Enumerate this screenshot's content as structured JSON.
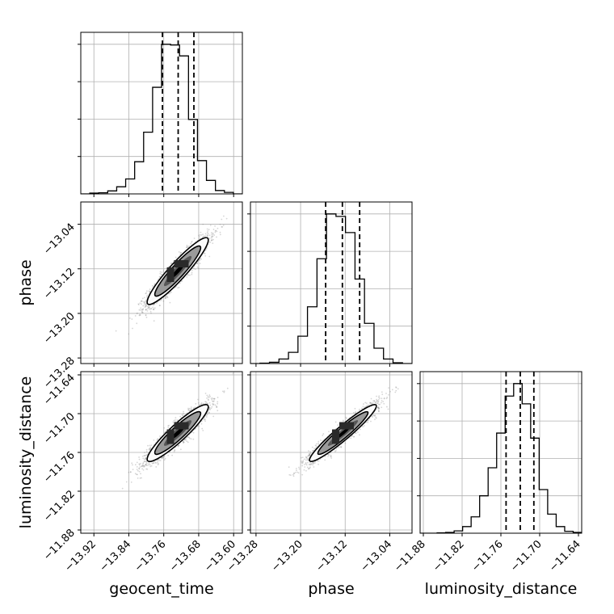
{
  "chart_data": {
    "type": "corner",
    "parameters": [
      {
        "name": "geocent_time",
        "label": "geocent_time",
        "range": [
          -13.95,
          -13.58
        ],
        "ticks": [
          -13.92,
          -13.84,
          -13.76,
          -13.68,
          -13.6
        ],
        "tick_labels": [
          "−13.92",
          "−13.84",
          "−13.76",
          "−13.68",
          "−13.60"
        ],
        "quantiles": [
          -13.763,
          -13.727,
          -13.691
        ]
      },
      {
        "name": "phase",
        "label": "phase",
        "range": [
          -13.29,
          -13.0
        ],
        "ticks": [
          -13.28,
          -13.2,
          -13.12,
          -13.04
        ],
        "tick_labels": [
          "−13.28",
          "−13.20",
          "−13.12",
          "−13.04"
        ],
        "quantiles": [
          -13.155,
          -13.125,
          -13.094
        ]
      },
      {
        "name": "luminosity_distance",
        "label": "luminosity_distance",
        "range": [
          -11.885,
          -11.635
        ],
        "ticks": [
          -11.88,
          -11.82,
          -11.76,
          -11.7,
          -11.64
        ],
        "tick_labels": [
          "−11.88",
          "−11.82",
          "−11.76",
          "−11.70",
          "−11.64"
        ],
        "quantiles": [
          -11.752,
          -11.73,
          -11.709
        ]
      }
    ],
    "histograms": [
      {
        "param": "geocent_time",
        "counts": [
          0,
          2,
          3,
          8,
          19,
          40,
          86,
          165,
          285,
          400,
          398,
          369,
          199,
          89,
          36,
          9,
          4,
          0
        ]
      },
      {
        "param": "phase",
        "counts": [
          0,
          1,
          3,
          11,
          27,
          66,
          137,
          253,
          361,
          355,
          316,
          204,
          97,
          37,
          11,
          2,
          0
        ]
      },
      {
        "param": "luminosity_distance",
        "counts": [
          0,
          0,
          1,
          2,
          6,
          17,
          42,
          96,
          168,
          257,
          352,
          384,
          332,
          244,
          112,
          49,
          17,
          5,
          2
        ]
      }
    ],
    "scatter_pairs": [
      {
        "x": "geocent_time",
        "y": "phase",
        "mean": [
          -13.728,
          -13.124
        ],
        "std": [
          0.035,
          0.03
        ],
        "corr": 0.93
      },
      {
        "x": "geocent_time",
        "y": "luminosity_distance",
        "mean": [
          -13.728,
          -11.73
        ],
        "std": [
          0.035,
          0.022
        ],
        "corr": 0.92
      },
      {
        "x": "phase",
        "y": "luminosity_distance",
        "mean": [
          -13.124,
          -11.73
        ],
        "std": [
          0.03,
          0.022
        ],
        "corr": 0.95
      }
    ],
    "grid": true,
    "colors": {
      "hist": "#000000",
      "points": "#8a8a8a",
      "contour": "#000000",
      "grid": "#b0b0b0",
      "levels": [
        "#ffffff",
        "#9a9a9a",
        "#575757",
        "#000000"
      ]
    }
  }
}
